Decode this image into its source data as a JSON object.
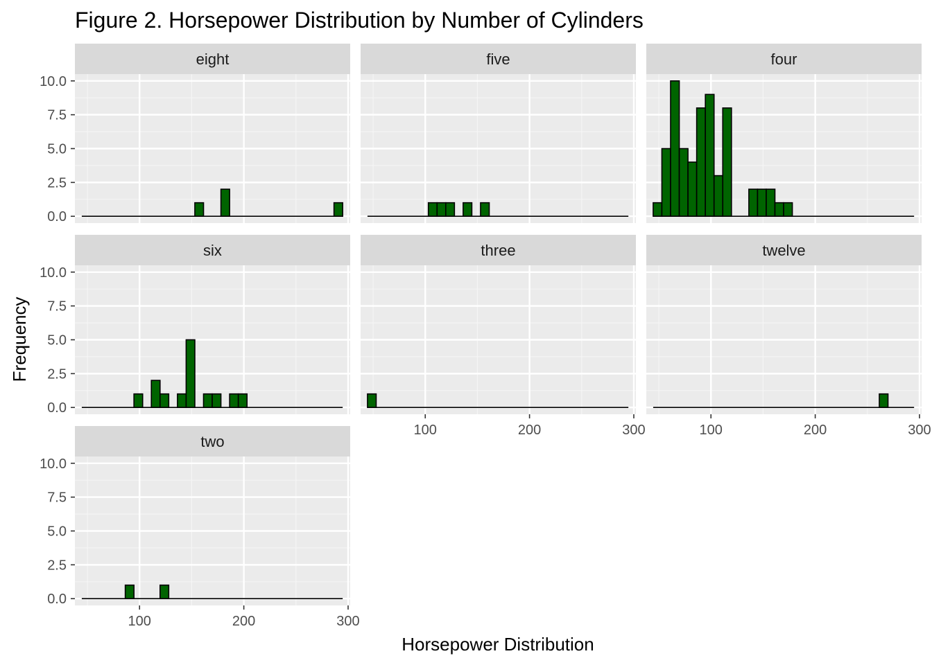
{
  "chart_data": {
    "type": "bar",
    "title": "Figure 2. Horsepower Distribution by Number of Cylinders",
    "xlabel": "Horsepower Distribution",
    "ylabel": "Frequency",
    "xlim": [
      38,
      302
    ],
    "ylim": [
      -0.5,
      10.5
    ],
    "x_ticks": [
      100,
      200,
      300
    ],
    "y_ticks": [
      0.0,
      2.5,
      5.0,
      7.5,
      10.0
    ],
    "y_tick_labels": [
      "0.0",
      "2.5",
      "5.0",
      "7.5",
      "10.0"
    ],
    "bins": {
      "count": 30,
      "start": 44.6,
      "width": 8.34
    },
    "bar_fill": "#006400",
    "bar_outline": "#000000",
    "panel_background": "#ebebeb",
    "strip_background": "#d9d9d9",
    "grid": true,
    "facets": [
      {
        "name": "eight",
        "counts": [
          0,
          0,
          0,
          0,
          0,
          0,
          0,
          0,
          0,
          0,
          0,
          0,
          0,
          1,
          0,
          0,
          2,
          0,
          0,
          0,
          0,
          0,
          0,
          0,
          0,
          0,
          0,
          0,
          0,
          1
        ]
      },
      {
        "name": "five",
        "counts": [
          0,
          0,
          0,
          0,
          0,
          0,
          0,
          1,
          1,
          1,
          0,
          1,
          0,
          1,
          0,
          0,
          0,
          0,
          0,
          0,
          0,
          0,
          0,
          0,
          0,
          0,
          0,
          0,
          0,
          0
        ]
      },
      {
        "name": "four",
        "counts": [
          1,
          5,
          10,
          5,
          4,
          8,
          9,
          3,
          8,
          0,
          0,
          2,
          2,
          2,
          1,
          1,
          0,
          0,
          0,
          0,
          0,
          0,
          0,
          0,
          0,
          0,
          0,
          0,
          0,
          0
        ]
      },
      {
        "name": "six",
        "counts": [
          0,
          0,
          0,
          0,
          0,
          0,
          1,
          0,
          2,
          1,
          0,
          1,
          5,
          0,
          1,
          1,
          0,
          1,
          1,
          0,
          0,
          0,
          0,
          0,
          0,
          0,
          0,
          0,
          0,
          0
        ]
      },
      {
        "name": "three",
        "counts": [
          1,
          0,
          0,
          0,
          0,
          0,
          0,
          0,
          0,
          0,
          0,
          0,
          0,
          0,
          0,
          0,
          0,
          0,
          0,
          0,
          0,
          0,
          0,
          0,
          0,
          0,
          0,
          0,
          0,
          0
        ]
      },
      {
        "name": "twelve",
        "counts": [
          0,
          0,
          0,
          0,
          0,
          0,
          0,
          0,
          0,
          0,
          0,
          0,
          0,
          0,
          0,
          0,
          0,
          0,
          0,
          0,
          0,
          0,
          0,
          0,
          0,
          0,
          1,
          0,
          0,
          0
        ]
      },
      {
        "name": "two",
        "counts": [
          0,
          0,
          0,
          0,
          0,
          1,
          0,
          0,
          0,
          1,
          0,
          0,
          0,
          0,
          0,
          0,
          0,
          0,
          0,
          0,
          0,
          0,
          0,
          0,
          0,
          0,
          0,
          0,
          0,
          0
        ]
      }
    ]
  }
}
